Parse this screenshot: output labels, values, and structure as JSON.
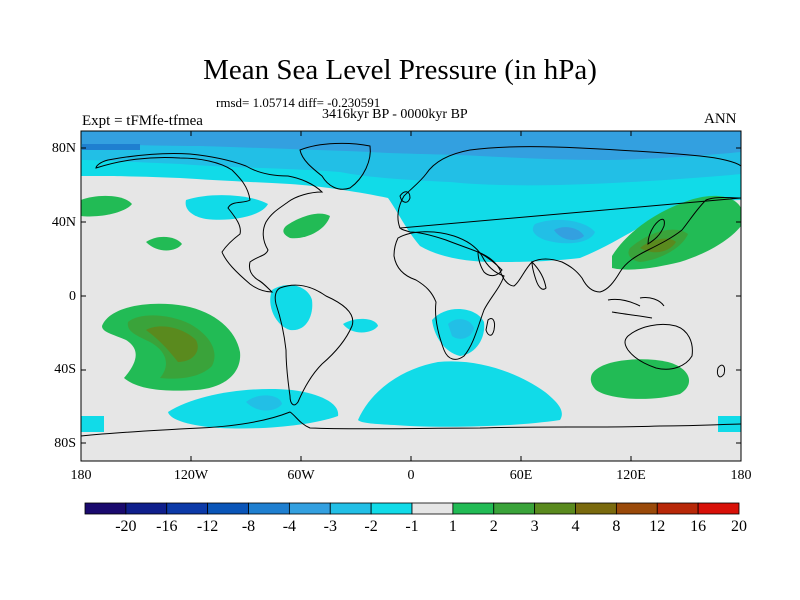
{
  "title": "Mean Sea Level Pressure (in hPa)",
  "stats": "rmsd= 1.05714 diff= -0.230591",
  "period": "3416kyr BP - 0000kyr BP",
  "experiment": "Expt = tFMfe-tfmea",
  "season": "ANN",
  "lat_ticks": [
    "80N",
    "40N",
    "0",
    "40S",
    "80S"
  ],
  "lon_ticks": [
    "180",
    "120W",
    "60W",
    "0",
    "60E",
    "120E",
    "180"
  ],
  "colorbar": {
    "labels": [
      "-20",
      "-16",
      "-12",
      "-8",
      "-4",
      "-3",
      "-2",
      "-1",
      "1",
      "2",
      "3",
      "4",
      "8",
      "12",
      "16",
      "20"
    ],
    "colors": [
      "#1a0a6e",
      "#0f1f8c",
      "#0c3aa8",
      "#0a55b8",
      "#1f7fd0",
      "#33a0e0",
      "#22bfe6",
      "#11dbe8",
      "#e6e6e6",
      "#22bb55",
      "#3aa33a",
      "#5a8a1e",
      "#7a6a0e",
      "#9a4a0a",
      "#b82808",
      "#d81008"
    ]
  },
  "colors": {
    "background": "#e6e6e6",
    "neg1": "#11dbe8",
    "neg2": "#22bfe6",
    "neg3": "#33a0e0",
    "neg4": "#1f7fd0",
    "pos1": "#22bb55",
    "pos2": "#3aa33a",
    "pos3": "#5a8a1e"
  }
}
